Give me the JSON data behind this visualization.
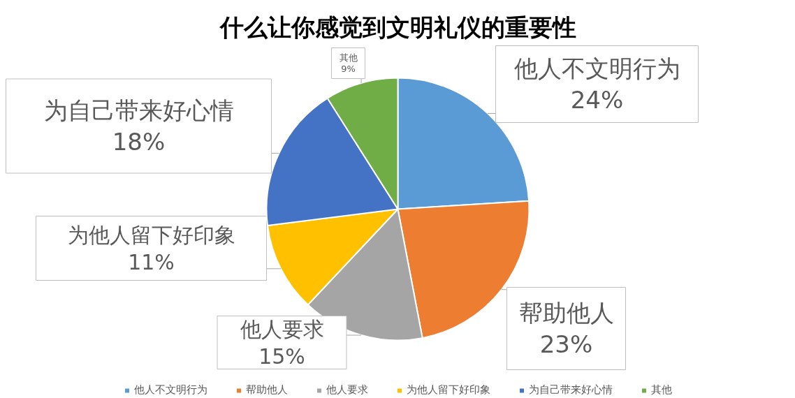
{
  "chart_data": {
    "type": "pie",
    "title": "什么让你感觉到文明礼仪的重要性",
    "categories": [
      "他人不文明行为",
      "帮助他人",
      "他人要求",
      "为他人留下好印象",
      "为自己带来好心情",
      "其他"
    ],
    "values": [
      24,
      23,
      15,
      11,
      18,
      9
    ],
    "value_labels": [
      "24%",
      "23%",
      "15%",
      "11%",
      "18%",
      "9%"
    ],
    "colors": [
      "#5b9bd5",
      "#ed7d31",
      "#a5a5a5",
      "#ffc000",
      "#4472c4",
      "#70ad47"
    ],
    "legend": "bottom"
  }
}
